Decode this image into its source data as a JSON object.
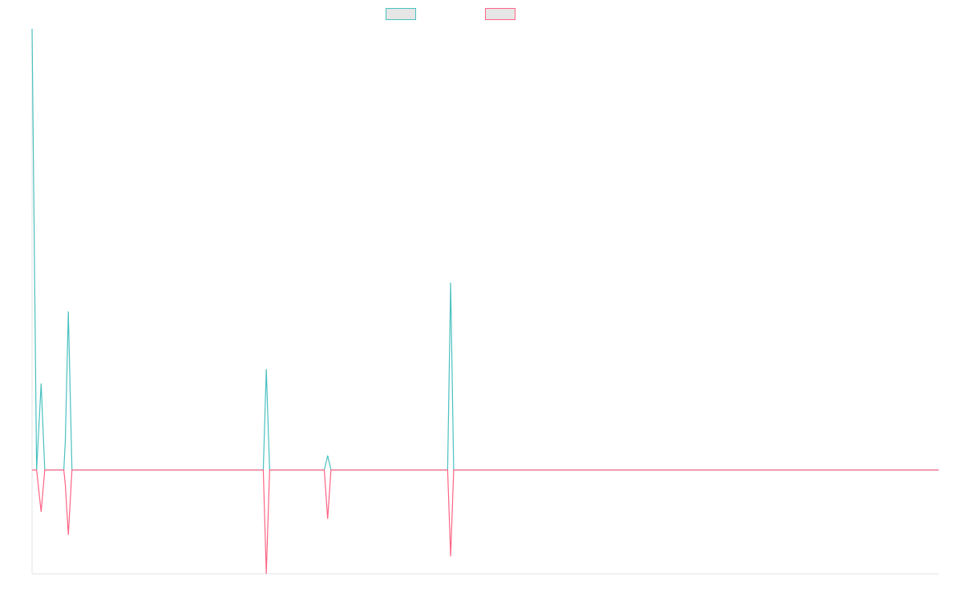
{
  "chart_data": {
    "type": "line",
    "legend_placement": "top-center",
    "grid": false,
    "xlim": [
      0,
      300
    ],
    "ylim": [
      -36,
      153
    ],
    "series": [
      {
        "color": "#4bc0c0",
        "points": [
          [
            0,
            153
          ],
          [
            1.5,
            0
          ],
          [
            3,
            30
          ],
          [
            4.2,
            0
          ],
          [
            10.5,
            0
          ],
          [
            11,
            10
          ],
          [
            12,
            55
          ],
          [
            13.2,
            0
          ],
          [
            76.5,
            0
          ],
          [
            77.5,
            35
          ],
          [
            78.6,
            0
          ],
          [
            96.7,
            0
          ],
          [
            97.8,
            5
          ],
          [
            98.9,
            0
          ],
          [
            137.5,
            0
          ],
          [
            138.5,
            65
          ],
          [
            139.5,
            0
          ],
          [
            300,
            0
          ]
        ]
      },
      {
        "color": "#ff6384",
        "points": [
          [
            0,
            0
          ],
          [
            1.5,
            0
          ],
          [
            3,
            -14.5
          ],
          [
            4.2,
            0
          ],
          [
            10.5,
            0
          ],
          [
            11,
            -5
          ],
          [
            12,
            -22.5
          ],
          [
            13.2,
            0
          ],
          [
            76.5,
            0
          ],
          [
            77.5,
            -36
          ],
          [
            78.6,
            0
          ],
          [
            96.7,
            0
          ],
          [
            97.8,
            -17
          ],
          [
            98.9,
            0
          ],
          [
            137.5,
            0
          ],
          [
            138.5,
            -30
          ],
          [
            139.5,
            0
          ],
          [
            300,
            0
          ]
        ]
      }
    ]
  }
}
